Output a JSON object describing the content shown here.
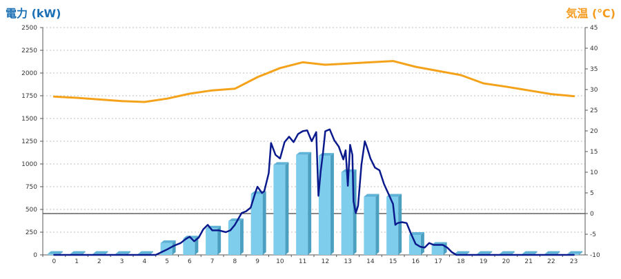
{
  "chart_data": {
    "type": "bar",
    "left_axis_title": "電力 (kW)",
    "right_axis_title": "気温 (℃)",
    "x_labels": [
      "0",
      "1",
      "2",
      "3",
      "4",
      "5",
      "6",
      "7",
      "8",
      "9",
      "10",
      "11",
      "12",
      "13",
      "14",
      "15",
      "16",
      "17",
      "18",
      "19",
      "20",
      "21",
      "22",
      "23"
    ],
    "y_left_ticks": [
      "0",
      "250",
      "500",
      "750",
      "1000",
      "1250",
      "1500",
      "1750",
      "2000",
      "2250",
      "2500"
    ],
    "y_right_ticks": [
      "-10",
      "-5",
      "0",
      "5",
      "10",
      "15",
      "20",
      "25",
      "30",
      "35",
      "40",
      "45"
    ],
    "ylim_left": [
      0,
      2500
    ],
    "ylim_right": [
      -10,
      45
    ],
    "grid": true,
    "colors": {
      "bar_front": "#7fcdec",
      "bar_side": "#4b9fc1",
      "bar_top": "#5fb3d6",
      "power_line": "#0a1a8c",
      "temp_line": "#f5a21b",
      "left_title": "#1a6fb5",
      "right_title": "#f59a1c"
    },
    "series": [
      {
        "kind": "bar",
        "axis": "left",
        "values": [
          10,
          10,
          10,
          10,
          10,
          130,
          180,
          290,
          370,
          670,
          990,
          1100,
          1090,
          910,
          640,
          640,
          220,
          110,
          10,
          10,
          10,
          10,
          10,
          10
        ]
      },
      {
        "kind": "line",
        "axis": "left",
        "x": [
          0,
          1,
          2,
          3,
          4,
          4.5,
          5,
          5.3,
          5.6,
          5.8,
          6,
          6.2,
          6.4,
          6.6,
          6.8,
          7,
          7.3,
          7.6,
          7.8,
          8,
          8.3,
          8.5,
          8.7,
          8.9,
          9,
          9.2,
          9.3,
          9.5,
          9.6,
          9.8,
          10,
          10.2,
          10.4,
          10.6,
          10.8,
          11,
          11.2,
          11.4,
          11.6,
          11.7,
          11.8,
          11.9,
          12,
          12.2,
          12.4,
          12.6,
          12.8,
          12.9,
          13,
          13.1,
          13.2,
          13.25,
          13.35,
          13.45,
          13.6,
          13.75,
          13.85,
          14,
          14.2,
          14.4,
          14.6,
          14.8,
          15,
          15.1,
          15.2,
          15.4,
          15.6,
          15.8,
          16,
          16.2,
          16.4,
          16.6,
          16.8,
          17,
          17.2,
          17.4,
          17.6,
          17.8,
          18,
          19,
          20,
          21,
          22,
          23
        ],
        "y": [
          0,
          0,
          0,
          0,
          0,
          0,
          60,
          100,
          130,
          170,
          200,
          150,
          190,
          280,
          330,
          270,
          270,
          250,
          270,
          330,
          460,
          480,
          520,
          680,
          750,
          680,
          700,
          900,
          1230,
          1100,
          1060,
          1240,
          1300,
          1240,
          1330,
          1360,
          1370,
          1250,
          1350,
          650,
          920,
          1120,
          1360,
          1380,
          1260,
          1190,
          1050,
          1150,
          760,
          1210,
          1100,
          590,
          460,
          540,
          990,
          1250,
          1180,
          1060,
          960,
          930,
          780,
          670,
          560,
          330,
          350,
          360,
          350,
          230,
          120,
          90,
          80,
          130,
          110,
          110,
          110,
          80,
          30,
          0,
          0,
          0,
          0,
          0,
          0,
          0
        ]
      },
      {
        "kind": "line",
        "axis": "right",
        "x": [
          0,
          1,
          2,
          3,
          4,
          5,
          6,
          7,
          8,
          9,
          10,
          11,
          12,
          13,
          14,
          15,
          16,
          17,
          18,
          19,
          20,
          21,
          22,
          23
        ],
        "y": [
          28.3,
          28.0,
          27.6,
          27.2,
          27.0,
          27.8,
          29.0,
          29.8,
          30.2,
          33.0,
          35.2,
          36.6,
          36.0,
          36.3,
          36.6,
          36.9,
          35.5,
          34.5,
          33.5,
          31.5,
          30.7,
          29.8,
          28.9,
          28.4
        ]
      }
    ]
  }
}
